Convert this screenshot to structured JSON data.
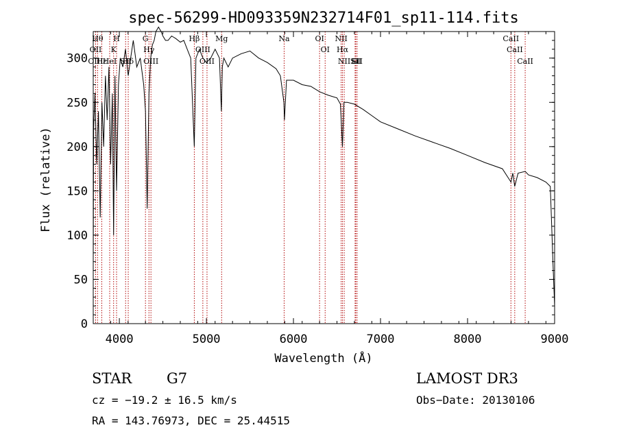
{
  "chart_data": {
    "type": "line",
    "title": "spec-56299-HD093359N232714F01_sp11-114.fits",
    "xlabel": "Wavelength (Å)",
    "ylabel": "Flux (relative)",
    "xlim": [
      3700,
      9000
    ],
    "ylim": [
      0,
      330
    ],
    "xticks": [
      4000,
      5000,
      6000,
      7000,
      8000,
      9000
    ],
    "yticks": [
      0,
      50,
      100,
      150,
      200,
      250,
      300
    ],
    "series": [
      {
        "name": "spectrum",
        "x": [
          3700,
          3705,
          3720,
          3740,
          3760,
          3780,
          3800,
          3820,
          3840,
          3860,
          3880,
          3900,
          3920,
          3934,
          3950,
          3968,
          3990,
          4010,
          4040,
          4070,
          4102,
          4130,
          4160,
          4200,
          4240,
          4280,
          4300,
          4320,
          4340,
          4360,
          4380,
          4400,
          4420,
          4450,
          4480,
          4500,
          4530,
          4560,
          4600,
          4650,
          4700,
          4740,
          4780,
          4820,
          4861,
          4880,
          4920,
          4960,
          5000,
          5050,
          5100,
          5150,
          5172,
          5183,
          5200,
          5250,
          5300,
          5400,
          5500,
          5600,
          5700,
          5800,
          5850,
          5890,
          5896,
          5920,
          6000,
          6100,
          6200,
          6300,
          6400,
          6500,
          6540,
          6563,
          6580,
          6620,
          6700,
          6800,
          6900,
          7000,
          7200,
          7400,
          7600,
          7800,
          8000,
          8200,
          8400,
          8498,
          8520,
          8542,
          8580,
          8662,
          8700,
          8800,
          8900,
          8950,
          8970,
          8980,
          9000
        ],
        "y": [
          70,
          220,
          260,
          180,
          240,
          120,
          250,
          200,
          280,
          230,
          290,
          180,
          260,
          100,
          280,
          150,
          270,
          300,
          290,
          310,
          280,
          300,
          320,
          290,
          300,
          270,
          240,
          130,
          260,
          300,
          315,
          320,
          330,
          335,
          330,
          325,
          320,
          320,
          325,
          322,
          318,
          320,
          310,
          300,
          200,
          300,
          310,
          300,
          295,
          300,
          310,
          300,
          240,
          290,
          300,
          290,
          300,
          305,
          308,
          300,
          295,
          288,
          280,
          250,
          230,
          275,
          275,
          270,
          268,
          262,
          258,
          255,
          248,
          200,
          250,
          250,
          248,
          242,
          235,
          228,
          220,
          212,
          205,
          198,
          190,
          182,
          175,
          160,
          170,
          155,
          170,
          172,
          168,
          165,
          160,
          155,
          100,
          70,
          20
        ]
      }
    ],
    "lines": [
      {
        "x": 3750,
        "label": "Hθ"
      },
      {
        "x": 3727,
        "label": "OII"
      },
      {
        "x": 3727,
        "label": "OIII"
      },
      {
        "x": 3798,
        "label": "Hε"
      },
      {
        "x": 3889,
        "label": "HeI"
      },
      {
        "x": 3934,
        "label": "K"
      },
      {
        "x": 3968,
        "label": "H"
      },
      {
        "x": 4072,
        "label": "SII"
      },
      {
        "x": 4102,
        "label": "Hδ"
      },
      {
        "x": 4300,
        "label": "G"
      },
      {
        "x": 4340,
        "label": "Hγ"
      },
      {
        "x": 4363,
        "label": "OIII"
      },
      {
        "x": 4861,
        "label": "Hβ"
      },
      {
        "x": 4959,
        "label": "OIII"
      },
      {
        "x": 5007,
        "label": "OIII"
      },
      {
        "x": 5175,
        "label": "Mg"
      },
      {
        "x": 5893,
        "label": "Na"
      },
      {
        "x": 6300,
        "label": "OI"
      },
      {
        "x": 6364,
        "label": "OI"
      },
      {
        "x": 6548,
        "label": "NII"
      },
      {
        "x": 6563,
        "label": "Hα"
      },
      {
        "x": 6583,
        "label": "NII"
      },
      {
        "x": 6708,
        "label": "Li"
      },
      {
        "x": 6716,
        "label": "SII"
      },
      {
        "x": 6731,
        "label": "SII"
      },
      {
        "x": 8498,
        "label": "CaII"
      },
      {
        "x": 8542,
        "label": "CaII"
      },
      {
        "x": 8662,
        "label": "CaII"
      }
    ]
  },
  "info": {
    "class": "STAR",
    "subclass": "G7",
    "survey": "LAMOST DR3",
    "cz": "cz = −19.2 ± 16.5 km/s",
    "obs_date": "Obs−Date: 20130106",
    "coords": "RA = 143.76973, DEC =  25.44515"
  }
}
